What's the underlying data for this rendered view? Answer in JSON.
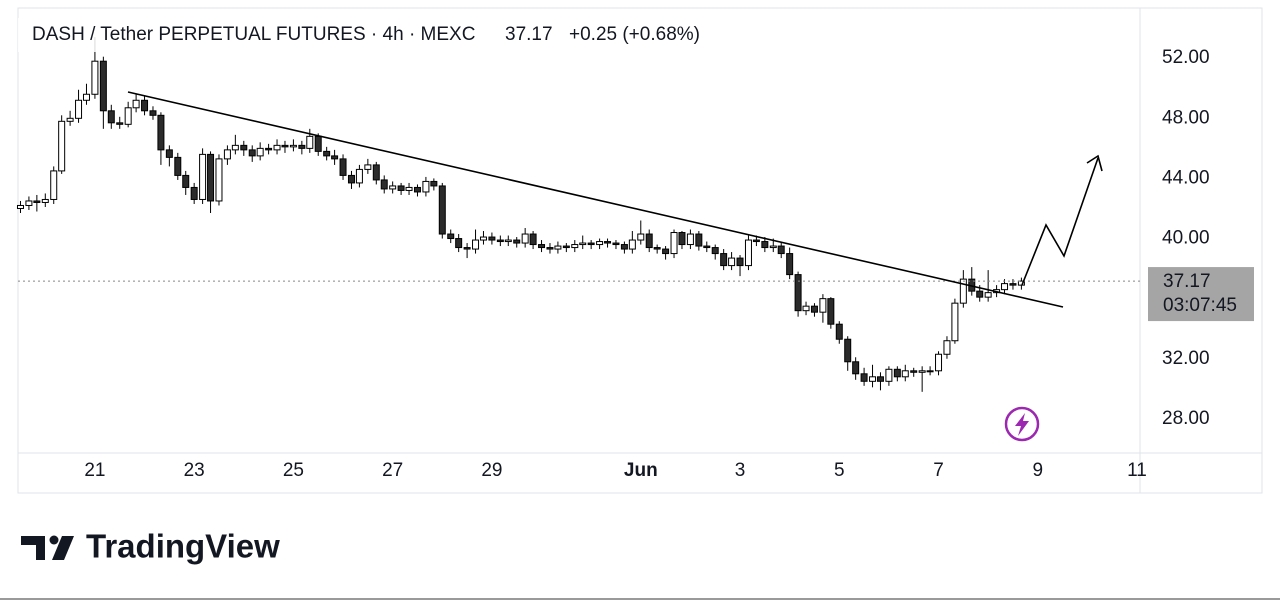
{
  "chart_data": {
    "type": "candlestick",
    "title": "DASH / Tether PERPETUAL FUTURES · 4h · MEXC",
    "last_price": 37.17,
    "change": "+0.25 (+0.68%)",
    "countdown": "03:07:45",
    "brand": "TradingView",
    "up_color": "#ffffff",
    "down_color": "#2b2b2b",
    "wick_color": "#000000",
    "grid": false,
    "xlim": [
      19.45,
      42.06
    ],
    "ylim": [
      25.73,
      55.34
    ],
    "xticks": [
      21,
      23,
      25,
      27,
      29,
      {
        "value": 32,
        "label": "Jun"
      },
      {
        "value": 34,
        "label": "3"
      },
      {
        "value": 36,
        "label": "5"
      },
      {
        "value": 38,
        "label": "7"
      },
      {
        "value": 40,
        "label": "9"
      },
      {
        "value": 42,
        "label": "11"
      }
    ],
    "yticks": [
      {
        "value": 28,
        "label": "28.00"
      },
      {
        "value": 32,
        "label": "32.00"
      },
      {
        "value": 36,
        "label": "36.00"
      },
      {
        "value": 40,
        "label": "40.00"
      },
      {
        "value": 44,
        "label": "44.00"
      },
      {
        "value": 48,
        "label": "48.00"
      },
      {
        "value": 52,
        "label": "52.00"
      }
    ],
    "x": [
      19.5,
      19.67,
      19.83,
      20,
      20.17,
      20.33,
      20.5,
      20.67,
      20.83,
      21,
      21.17,
      21.33,
      21.5,
      21.67,
      21.83,
      22,
      22.17,
      22.33,
      22.5,
      22.67,
      22.83,
      23,
      23.17,
      23.33,
      23.5,
      23.67,
      23.83,
      24,
      24.17,
      24.33,
      24.5,
      24.67,
      24.83,
      25,
      25.17,
      25.33,
      25.5,
      25.67,
      25.83,
      26,
      26.17,
      26.33,
      26.5,
      26.67,
      26.83,
      27,
      27.17,
      27.33,
      27.5,
      27.67,
      27.83,
      28,
      28.17,
      28.33,
      28.5,
      28.67,
      28.83,
      29,
      29.17,
      29.33,
      29.5,
      29.67,
      29.83,
      30,
      30.17,
      30.33,
      30.5,
      30.67,
      30.83,
      31,
      31.17,
      31.33,
      31.5,
      31.67,
      31.83,
      32,
      32.17,
      32.33,
      32.5,
      32.67,
      32.83,
      33,
      33.17,
      33.33,
      33.5,
      33.67,
      33.83,
      34,
      34.17,
      34.33,
      34.5,
      34.67,
      34.83,
      35,
      35.17,
      35.33,
      35.5,
      35.67,
      35.83,
      36,
      36.17,
      36.33,
      36.5,
      36.67,
      36.83,
      37,
      37.17,
      37.33,
      37.5,
      37.67,
      37.83,
      38,
      38.17,
      38.33,
      38.5,
      38.67,
      38.83,
      39,
      39.17,
      39.33,
      39.5,
      39.67
    ],
    "open": [
      42.0,
      42.2,
      42.5,
      42.4,
      42.6,
      44.5,
      47.8,
      48.0,
      49.2,
      49.6,
      51.8,
      48.5,
      47.7,
      47.6,
      48.7,
      49.2,
      48.5,
      48.2,
      45.9,
      45.4,
      44.2,
      43.4,
      42.6,
      45.6,
      42.5,
      45.3,
      45.9,
      46.2,
      45.9,
      45.5,
      46.0,
      45.9,
      46.2,
      46.1,
      46.2,
      46.0,
      46.8,
      45.8,
      45.5,
      45.3,
      44.2,
      43.7,
      44.6,
      44.9,
      43.9,
      43.3,
      43.5,
      43.2,
      43.4,
      43.1,
      43.8,
      43.5,
      40.3,
      40.0,
      39.4,
      39.3,
      39.9,
      40.1,
      39.9,
      39.8,
      39.9,
      39.7,
      40.3,
      39.6,
      39.4,
      39.3,
      39.5,
      39.4,
      39.6,
      39.7,
      39.6,
      39.8,
      39.7,
      39.6,
      39.3,
      39.9,
      40.3,
      39.4,
      39.3,
      39.0,
      40.4,
      39.6,
      40.3,
      39.5,
      39.4,
      39.0,
      38.2,
      38.7,
      38.2,
      39.9,
      39.8,
      39.4,
      39.5,
      39.0,
      37.6,
      35.2,
      35.5,
      35.1,
      36.0,
      34.3,
      33.3,
      31.8,
      31.0,
      30.5,
      30.8,
      30.5,
      31.3,
      30.8,
      31.2,
      31.1,
      31.2,
      31.2,
      32.3,
      33.2,
      35.7,
      37.3,
      36.5,
      36.1,
      36.4,
      36.6,
      37.0,
      36.9
    ],
    "high": [
      42.5,
      42.8,
      42.9,
      43.0,
      44.8,
      48.2,
      48.5,
      49.9,
      50.3,
      53.4,
      52.1,
      48.9,
      48.1,
      49.1,
      49.6,
      49.5,
      48.8,
      48.4,
      46.2,
      45.7,
      44.5,
      43.7,
      46.0,
      45.8,
      45.6,
      46.2,
      46.9,
      46.5,
      46.2,
      46.4,
      46.3,
      46.6,
      46.5,
      46.6,
      46.5,
      47.3,
      47.0,
      46.1,
      45.9,
      45.6,
      44.5,
      44.9,
      45.3,
      45.1,
      44.2,
      43.8,
      43.7,
      43.7,
      43.6,
      44.1,
      44.0,
      43.7,
      40.6,
      40.3,
      39.7,
      40.6,
      40.5,
      40.4,
      40.2,
      40.2,
      40.1,
      40.7,
      40.5,
      39.9,
      39.7,
      39.8,
      39.7,
      39.9,
      40.2,
      39.9,
      40.0,
      40.0,
      39.9,
      39.8,
      40.5,
      41.2,
      40.6,
      39.6,
      39.5,
      40.6,
      40.5,
      40.6,
      40.5,
      39.8,
      39.6,
      39.3,
      39.1,
      38.9,
      40.2,
      40.2,
      40.1,
      40.0,
      39.8,
      39.4,
      37.8,
      35.8,
      35.7,
      36.3,
      36.1,
      34.5,
      33.5,
      32.1,
      31.4,
      31.6,
      31.1,
      31.5,
      31.5,
      31.6,
      31.4,
      31.5,
      31.5,
      32.5,
      33.5,
      36.0,
      37.9,
      38.1,
      36.9,
      37.9,
      36.9,
      37.3,
      37.3,
      37.4
    ],
    "low": [
      41.7,
      41.9,
      41.8,
      42.1,
      42.3,
      44.3,
      47.5,
      47.7,
      48.9,
      49.3,
      47.3,
      47.3,
      47.3,
      47.4,
      48.4,
      48.2,
      47.9,
      44.9,
      44.8,
      43.9,
      42.9,
      42.3,
      42.3,
      41.7,
      42.2,
      44.9,
      45.6,
      45.5,
      45.1,
      45.2,
      45.6,
      45.6,
      45.7,
      45.8,
      45.6,
      45.7,
      45.5,
      45.2,
      44.9,
      43.9,
      43.3,
      43.4,
      44.3,
      43.6,
      43.0,
      43.0,
      42.9,
      42.9,
      42.8,
      42.8,
      43.2,
      40.0,
      39.7,
      39.1,
      38.7,
      39.0,
      39.6,
      39.6,
      39.5,
      39.5,
      39.4,
      39.4,
      39.3,
      39.1,
      39.0,
      39.0,
      39.1,
      39.1,
      39.3,
      39.3,
      39.3,
      39.4,
      39.3,
      39.0,
      39.0,
      39.6,
      39.1,
      39.0,
      38.6,
      38.7,
      39.3,
      39.3,
      39.2,
      39.1,
      38.6,
      37.9,
      37.9,
      37.5,
      37.9,
      39.5,
      39.1,
      39.1,
      38.7,
      37.3,
      34.8,
      34.9,
      34.8,
      34.4,
      34.0,
      33.0,
      31.2,
      30.6,
      30.2,
      30.1,
      29.9,
      30.2,
      30.5,
      30.5,
      30.8,
      29.8,
      30.9,
      30.9,
      32.0,
      33.0,
      35.4,
      36.2,
      35.8,
      35.8,
      36.1,
      36.3,
      36.6,
      36.6
    ],
    "close": [
      42.2,
      42.5,
      42.4,
      42.6,
      44.5,
      47.8,
      48.0,
      49.2,
      49.6,
      51.8,
      48.5,
      47.7,
      47.6,
      48.7,
      49.2,
      48.5,
      48.2,
      45.9,
      45.4,
      44.2,
      43.4,
      42.6,
      45.6,
      42.5,
      45.3,
      45.9,
      46.2,
      45.9,
      45.5,
      46.0,
      45.9,
      46.2,
      46.1,
      46.2,
      46.0,
      46.8,
      45.8,
      45.5,
      45.3,
      44.2,
      43.7,
      44.6,
      44.9,
      43.9,
      43.3,
      43.5,
      43.2,
      43.4,
      43.1,
      43.8,
      43.5,
      40.3,
      40.0,
      39.4,
      39.3,
      39.9,
      40.1,
      39.9,
      39.8,
      39.9,
      39.7,
      40.3,
      39.6,
      39.4,
      39.3,
      39.5,
      39.4,
      39.6,
      39.7,
      39.6,
      39.8,
      39.7,
      39.6,
      39.3,
      39.9,
      40.3,
      39.4,
      39.3,
      39.0,
      40.4,
      39.6,
      40.3,
      39.5,
      39.4,
      39.0,
      38.2,
      38.7,
      38.2,
      39.9,
      39.8,
      39.4,
      39.5,
      39.0,
      37.6,
      35.2,
      35.5,
      35.1,
      36.0,
      34.3,
      33.3,
      31.8,
      31.0,
      30.5,
      30.8,
      30.5,
      31.3,
      30.8,
      31.2,
      31.1,
      31.2,
      31.2,
      32.3,
      33.2,
      35.7,
      37.3,
      36.5,
      36.1,
      36.4,
      36.6,
      37.0,
      36.9,
      37.17
    ]
  }
}
